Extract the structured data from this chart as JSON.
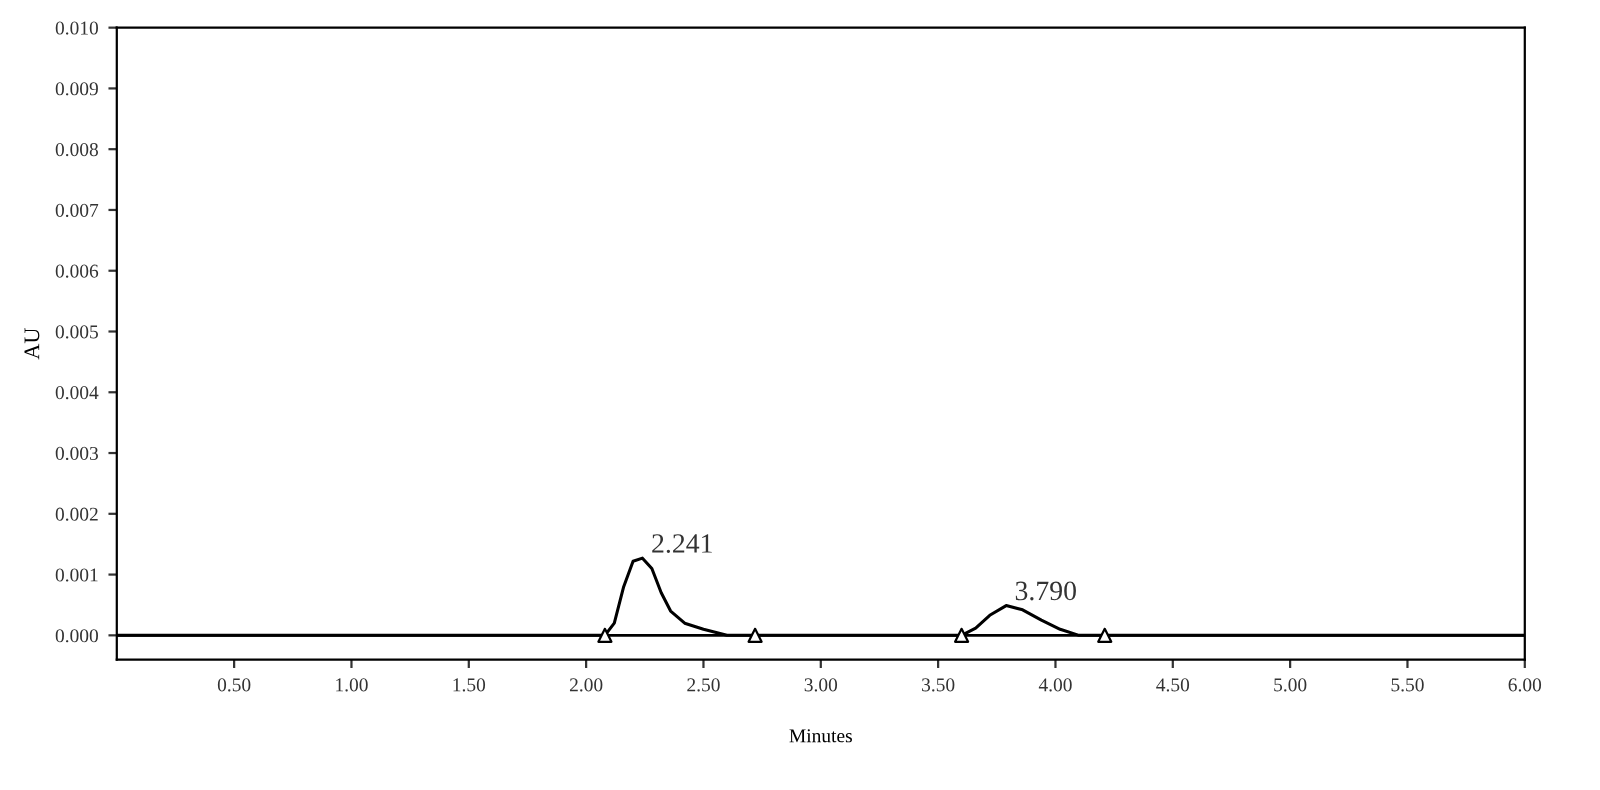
{
  "chart_data": {
    "type": "line",
    "xlabel": "Minutes",
    "ylabel": "AU",
    "xlim": [
      0,
      6.0
    ],
    "ylim": [
      -0.0004,
      0.01
    ],
    "xticks": [
      {
        "value": 0.5,
        "label": "0.50"
      },
      {
        "value": 1.0,
        "label": "1.00"
      },
      {
        "value": 1.5,
        "label": "1.50"
      },
      {
        "value": 2.0,
        "label": "2.00"
      },
      {
        "value": 2.5,
        "label": "2.50"
      },
      {
        "value": 3.0,
        "label": "3.00"
      },
      {
        "value": 3.5,
        "label": "3.50"
      },
      {
        "value": 4.0,
        "label": "4.00"
      },
      {
        "value": 4.5,
        "label": "4.50"
      },
      {
        "value": 5.0,
        "label": "5.00"
      },
      {
        "value": 5.5,
        "label": "5.50"
      },
      {
        "value": 6.0,
        "label": "6.00"
      }
    ],
    "yticks": [
      {
        "value": 0,
        "label": "0.000"
      },
      {
        "value": 0.001,
        "label": "0.001"
      },
      {
        "value": 0.002,
        "label": "0.002"
      },
      {
        "value": 0.003,
        "label": "0.003"
      },
      {
        "value": 0.004,
        "label": "0.004"
      },
      {
        "value": 0.005,
        "label": "0.005"
      },
      {
        "value": 0.006,
        "label": "0.006"
      },
      {
        "value": 0.007,
        "label": "0.007"
      },
      {
        "value": 0.008,
        "label": "0.008"
      },
      {
        "value": 0.009,
        "label": "0.009"
      },
      {
        "value": 0.01,
        "label": "0.010"
      }
    ],
    "grid": false,
    "legend": false,
    "series": [
      {
        "color": "#000000",
        "marker": "none",
        "line_style": "solid",
        "x": [
          0,
          2.08,
          2.12,
          2.16,
          2.2,
          2.24,
          2.28,
          2.32,
          2.36,
          2.42,
          2.5,
          2.6,
          2.72,
          3.6,
          3.66,
          3.72,
          3.79,
          3.86,
          3.94,
          4.02,
          4.1,
          4.21,
          6.0
        ],
        "values": [
          0,
          0,
          0.0002,
          0.0008,
          0.00122,
          0.00127,
          0.0011,
          0.0007,
          0.0004,
          0.0002,
          0.0001,
          0,
          0,
          0,
          0.00012,
          0.00033,
          0.00049,
          0.00042,
          0.00025,
          0.0001,
          0,
          0,
          0
        ]
      },
      {
        "type": "scatter",
        "color": "#000000",
        "marker": "triangle",
        "x": [
          2.08,
          2.72,
          3.6,
          4.21
        ],
        "values": [
          0,
          0,
          0,
          0
        ]
      }
    ],
    "ref_lines": [
      {
        "axis": "y",
        "value": 0,
        "color": "#000000",
        "line_style": "solid"
      }
    ],
    "annotations": [
      {
        "text": "2.241",
        "x": 2.241,
        "y": 0.00127
      },
      {
        "text": "3.790",
        "x": 3.79,
        "y": 0.00049
      }
    ]
  }
}
